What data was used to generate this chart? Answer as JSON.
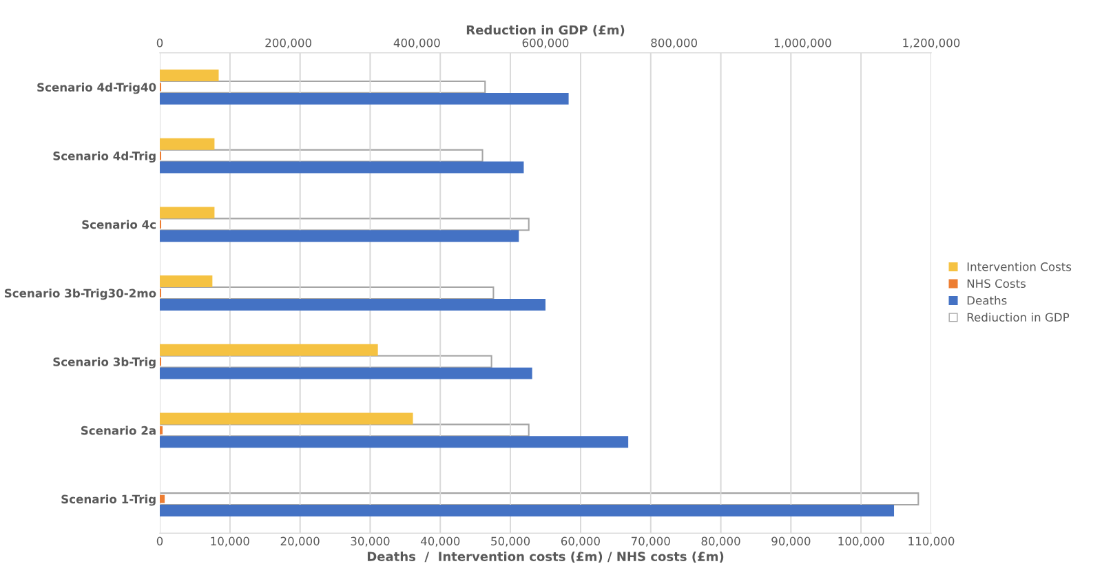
{
  "chart_data": {
    "type": "bar",
    "orientation": "horizontal",
    "xlabel": "Deaths  /  Intervention costs (£m) / NHS costs (£m)",
    "x2label": "Reduction in GDP (£m)",
    "categories": [
      "Scenario 4d-Trig40",
      "Scenario 4d-Trig",
      "Scenario 4c",
      "Scenario 3b-Trig30-2mo",
      "Scenario 3b-Trig",
      "Scenario 2a",
      "Scenario 1-Trig"
    ],
    "series": [
      {
        "name": "Intervention Costs",
        "color": "#f5c242",
        "values": [
          8400,
          7800,
          7800,
          7500,
          31100,
          36100,
          0
        ]
      },
      {
        "name": "NHS Costs",
        "color": "#ed7d31",
        "values": [
          200,
          200,
          200,
          200,
          200,
          400,
          700
        ]
      },
      {
        "name": "Rediuction in GDP",
        "color": "#ffffff",
        "axis": "x2",
        "values": [
          506000,
          502000,
          574000,
          519000,
          516000,
          574000,
          1180000
        ]
      },
      {
        "name": "Deaths",
        "color": "#4472c4",
        "values": [
          58300,
          51900,
          51200,
          55000,
          53100,
          66800,
          104700
        ]
      }
    ],
    "xlim": [
      0,
      110000
    ],
    "xticks": [
      0,
      {
        "value": 10000,
        "label": "10,000"
      },
      {
        "value": 20000,
        "label": "20,000"
      },
      {
        "value": 30000,
        "label": "30,000"
      },
      {
        "value": 40000,
        "label": "40,000"
      },
      {
        "value": 50000,
        "label": "50,000"
      },
      {
        "value": 60000,
        "label": "60,000"
      },
      {
        "value": 70000,
        "label": "70,000"
      },
      {
        "value": 80000,
        "label": "80,000"
      },
      {
        "value": 90000,
        "label": "90,000"
      },
      {
        "value": 100000,
        "label": "100,000"
      },
      {
        "value": 110000,
        "label": "110,000"
      }
    ],
    "x2lim": [
      0,
      1200000
    ],
    "x2ticks": [
      0,
      {
        "value": 200000,
        "label": "200,000"
      },
      {
        "value": 400000,
        "label": "400,000"
      },
      {
        "value": 600000,
        "label": "600,000"
      },
      {
        "value": 800000,
        "label": "800,000"
      },
      {
        "value": 1000000,
        "label": "1,000,000"
      },
      {
        "value": 1200000,
        "label": "1,200,000"
      }
    ],
    "grid": "x",
    "legend": "right"
  }
}
